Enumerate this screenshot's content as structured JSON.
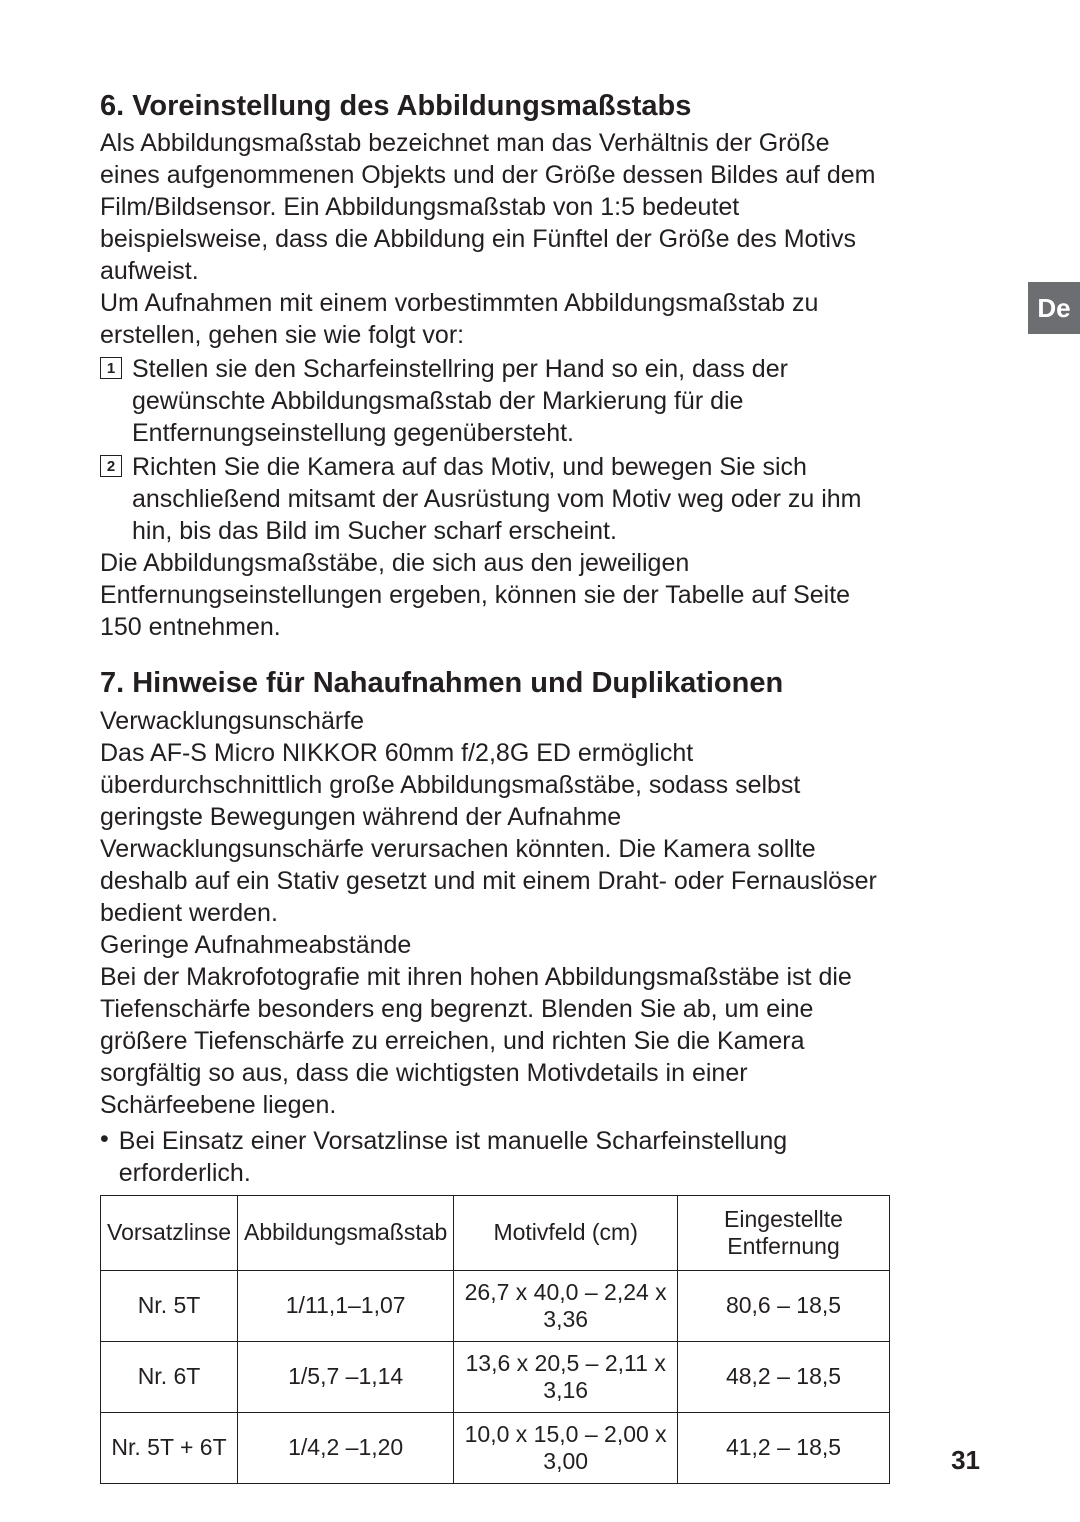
{
  "side_tab": "De",
  "page_number": "31",
  "section6": {
    "title": "6. Voreinstellung des Abbildungsmaßstabs",
    "intro": "Als Abbildungsmaßstab bezeichnet man das Verhältnis der Größe eines aufgenommenen Objekts und der Größe dessen Bildes auf dem Film/Bildsensor. Ein Abbildungsmaßstab von 1:5 bedeutet beispielsweise, dass die Abbildung ein Fünftel der Größe des Motivs aufweist.",
    "intro2": "Um Aufnahmen mit einem vorbestimmten Abbildungsmaßstab zu erstellen, gehen sie wie folgt vor:",
    "steps": [
      {
        "num": "1",
        "text": "Stellen sie den Scharfeinstellring per Hand so ein, dass der gewünschte Abbildungsmaßstab der Markierung für die Entfernungseinstellung gegenübersteht."
      },
      {
        "num": "2",
        "text": "Richten Sie die Kamera auf das Motiv, und bewegen Sie sich anschließend mitsamt der Ausrüstung vom Motiv weg oder zu ihm hin, bis das Bild im Sucher scharf erscheint."
      }
    ],
    "outro": "Die Abbildungsmaßstäbe, die sich aus den jeweiligen Entfernungseinstellungen ergeben, können sie der Tabelle auf Seite 150 entnehmen."
  },
  "section7": {
    "title": "7. Hinweise für Nahaufnahmen und Duplikationen",
    "sub1": "Verwacklungsunschärfe",
    "para1": "Das AF-S Micro NIKKOR 60mm f/2,8G ED ermöglicht überdurchschnittlich große Abbildungsmaßstäbe, sodass selbst geringste Bewegungen während der Aufnahme Verwacklungsunschärfe verursachen könnten. Die Kamera sollte deshalb auf ein Stativ gesetzt und mit einem Draht- oder Fernauslöser bedient werden.",
    "sub2": "Geringe Aufnahmeabstände",
    "para2": "Bei der Makrofotografie mit ihren hohen Abbildungsmaßstäbe ist die Tiefenschärfe besonders eng begrenzt. Blenden Sie ab, um eine größere Tiefenschärfe zu erreichen, und richten Sie die Kamera sorgfältig so aus, dass die wichtigsten Motivdetails in einer Schärfeebene liegen.",
    "bullet": "Bei Einsatz einer Vorsatzlinse ist manuelle Scharfeinstellung erforderlich."
  },
  "table": {
    "headers": [
      "Vorsatzlinse",
      "Abbildungsmaßstab",
      "Motivfeld (cm)",
      "Eingestellte Entfernung"
    ],
    "rows": [
      [
        "Nr. 5T",
        "1/11,1–1,07",
        "26,7 x 40,0 – 2,24 x 3,36",
        "80,6 – 18,5"
      ],
      [
        "Nr. 6T",
        "1/5,7 –1,14",
        "13,6 x 20,5 – 2,11 x 3,16",
        "48,2 – 18,5"
      ],
      [
        "Nr. 5T + 6T",
        "1/4,2 –1,20",
        "10,0 x 15,0 – 2,00 x 3,00",
        "41,2 – 18,5"
      ]
    ],
    "col_widths": [
      "15%",
      "22%",
      "33%",
      "30%"
    ]
  }
}
